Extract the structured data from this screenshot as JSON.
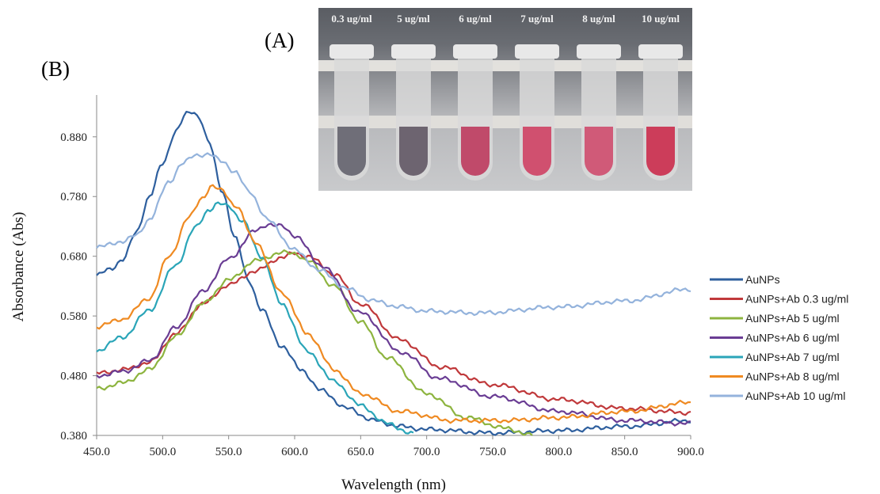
{
  "panels": {
    "a": "(A)",
    "b": "(B)"
  },
  "photo": {
    "tube_labels": [
      "0.3 ug/ml",
      "5 ug/ml",
      "6 ug/ml",
      "7 ug/ml",
      "8 ug/ml",
      "10 ug/ml"
    ],
    "tube_colors": [
      "#6f6e78",
      "#6d6470",
      "#c04a6a",
      "#d0506f",
      "#d05a78",
      "#cc3d5a"
    ]
  },
  "chart_data": {
    "type": "line",
    "xlabel": "Wavelength (nm)",
    "ylabel": "Absorbance (Abs)",
    "xlim": [
      450,
      900
    ],
    "ylim": [
      0.38,
      0.95
    ],
    "x_ticks": [
      "450.0",
      "500.0",
      "550.0",
      "600.0",
      "650.0",
      "700.0",
      "750.0",
      "800.0",
      "850.0",
      "900.0"
    ],
    "y_ticks": [
      "0.380",
      "0.480",
      "0.580",
      "0.680",
      "0.780",
      "0.880"
    ],
    "legend_position": "right",
    "series": [
      {
        "name": "AuNPs",
        "color": "#2e5f9e",
        "x": [
          450,
          460,
          470,
          480,
          490,
          500,
          510,
          518,
          523,
          528,
          535,
          545,
          555,
          565,
          575,
          590,
          605,
          620,
          640,
          660,
          680,
          700,
          750,
          800,
          850,
          900
        ],
        "y": [
          0.648,
          0.658,
          0.675,
          0.72,
          0.78,
          0.835,
          0.89,
          0.918,
          0.922,
          0.912,
          0.87,
          0.79,
          0.71,
          0.64,
          0.59,
          0.53,
          0.49,
          0.455,
          0.425,
          0.405,
          0.395,
          0.39,
          0.384,
          0.388,
          0.395,
          0.405
        ]
      },
      {
        "name": "AuNPs+Ab 0.3 ug/ml",
        "color": "#c0393b",
        "x": [
          450,
          470,
          490,
          510,
          530,
          550,
          570,
          590,
          600,
          610,
          630,
          650,
          680,
          710,
          750,
          800,
          850,
          900
        ],
        "y": [
          0.484,
          0.49,
          0.502,
          0.55,
          0.6,
          0.632,
          0.655,
          0.678,
          0.685,
          0.68,
          0.65,
          0.6,
          0.54,
          0.495,
          0.465,
          0.44,
          0.425,
          0.418
        ]
      },
      {
        "name": "AuNPs+Ab 5 ug/ml",
        "color": "#8db43f",
        "x": [
          450,
          470,
          490,
          510,
          530,
          550,
          570,
          590,
          600,
          610,
          630,
          650,
          670,
          700,
          730,
          760,
          780
        ],
        "y": [
          0.458,
          0.468,
          0.49,
          0.545,
          0.6,
          0.64,
          0.672,
          0.686,
          0.685,
          0.672,
          0.63,
          0.57,
          0.51,
          0.45,
          0.41,
          0.392,
          0.38
        ]
      },
      {
        "name": "AuNPs+Ab 6 ug/ml",
        "color": "#6a3d94",
        "x": [
          450,
          470,
          490,
          510,
          530,
          550,
          570,
          580,
          590,
          600,
          620,
          650,
          680,
          710,
          750,
          800,
          850,
          900
        ],
        "y": [
          0.48,
          0.487,
          0.505,
          0.56,
          0.62,
          0.675,
          0.722,
          0.734,
          0.73,
          0.715,
          0.665,
          0.585,
          0.52,
          0.475,
          0.445,
          0.42,
          0.405,
          0.4
        ]
      },
      {
        "name": "AuNPs+Ab 7 ug/ml",
        "color": "#2aa5b8",
        "x": [
          450,
          470,
          490,
          510,
          525,
          535,
          542,
          550,
          560,
          575,
          590,
          610,
          630,
          650,
          670,
          690
        ],
        "y": [
          0.522,
          0.545,
          0.59,
          0.665,
          0.728,
          0.758,
          0.768,
          0.764,
          0.74,
          0.68,
          0.6,
          0.52,
          0.47,
          0.43,
          0.4,
          0.382
        ]
      },
      {
        "name": "AuNPs+Ab 8 ug/ml",
        "color": "#ef8a22",
        "x": [
          450,
          470,
          490,
          505,
          520,
          530,
          537,
          545,
          555,
          570,
          590,
          610,
          630,
          650,
          680,
          720,
          760,
          800,
          850,
          900
        ],
        "y": [
          0.562,
          0.575,
          0.61,
          0.68,
          0.745,
          0.778,
          0.797,
          0.79,
          0.765,
          0.705,
          0.62,
          0.55,
          0.49,
          0.45,
          0.42,
          0.405,
          0.405,
          0.41,
          0.42,
          0.435
        ]
      },
      {
        "name": "AuNPs+Ab 10 ug/ml",
        "color": "#94b3dc",
        "x": [
          450,
          470,
          480,
          490,
          505,
          515,
          525,
          535,
          545,
          555,
          565,
          580,
          600,
          620,
          640,
          660,
          680,
          700,
          740,
          800,
          850,
          900
        ],
        "y": [
          0.695,
          0.705,
          0.715,
          0.742,
          0.805,
          0.835,
          0.85,
          0.85,
          0.84,
          0.82,
          0.79,
          0.74,
          0.69,
          0.655,
          0.625,
          0.605,
          0.595,
          0.588,
          0.585,
          0.595,
          0.605,
          0.625
        ]
      }
    ]
  }
}
